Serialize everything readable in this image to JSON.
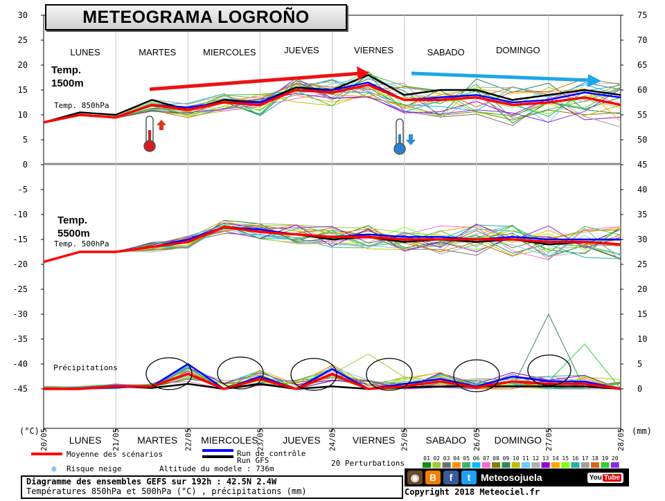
{
  "header": {
    "title": "METEOGRAMA LOGROÑO"
  },
  "annotations": {
    "temp1500": [
      "Temp.",
      "1500m"
    ],
    "temp5500": [
      "Temp.",
      "5500m"
    ],
    "label850": "Temp. 850hPa",
    "label500": "Temp. 500hPa",
    "precip": "Précipitations"
  },
  "days_top": [
    "LUNES",
    "MARTES",
    "MIERCOLES",
    "JUEVES",
    "VIERNES",
    "SABADO",
    "DOMINGO"
  ],
  "days_bottom": [
    "LUNES",
    "MARTES",
    "MIERCOLES",
    "JUEVES",
    "VIERNES",
    "SABADO",
    "DOMINGO"
  ],
  "legend": {
    "mean": "Moyenne des scénarios",
    "control": "Run de contrôle",
    "gfs": "Run GFS",
    "snow": "Risque neige",
    "altitude": "Altitude du modele : 736m",
    "perturbations": "20 Perturbations",
    "pert_ids": [
      "01",
      "02",
      "03",
      "04",
      "05",
      "06",
      "07",
      "08",
      "09",
      "10",
      "11",
      "12",
      "13",
      "14",
      "15",
      "16",
      "17",
      "18",
      "19",
      "20"
    ],
    "pert_colors": [
      "#0f8f0f",
      "#9acd32",
      "#707070",
      "#ff8c00",
      "#3cb371",
      "#00bfff",
      "#ff66cc",
      "#808000",
      "#2e8b57",
      "#c0c000",
      "#66ccff",
      "#b0b0b0",
      "#9400d3",
      "#ffa500",
      "#7fff00",
      "#20b2aa",
      "#a0a0a0",
      "#d2691e",
      "#32cd32",
      "#8a2be2"
    ]
  },
  "colors": {
    "mean": "#ff0000",
    "control": "#0000ff",
    "gfs": "#000000",
    "rise_arrow": "#ee1111",
    "fall_arrow": "#1ba7e8"
  },
  "caption": {
    "line1": "Diagramme des ensembles GEFS sur 192h : 42.5N 2.4W",
    "line2": "Températures 850hPa et 500hPa (°C) , précipitations (mm)"
  },
  "branding": {
    "site": "Meteosojuela",
    "youtube": "You",
    "youtube_tube": "Tube",
    "copyright": "Copyright 2018 Meteociel.fr"
  },
  "icon_names": [
    "thermometer-up-icon",
    "thermometer-down-icon",
    "snowflake-icon",
    "camera-icon",
    "blogger-icon",
    "facebook-icon",
    "twitter-icon",
    "youtube-icon"
  ],
  "chart_data": {
    "type": "line",
    "title": "METEOGRAMA LOGROÑO",
    "x_dates": [
      "20/05",
      "21/05",
      "22/05",
      "23/05",
      "24/05",
      "25/05",
      "26/05",
      "27/05",
      "28/05"
    ],
    "x_hours": [
      0,
      12,
      24,
      36,
      48,
      60,
      72,
      84,
      96,
      108,
      120,
      132,
      144,
      156,
      168,
      180,
      192
    ],
    "left_axis": {
      "label": "(°C)",
      "ticks": [
        30,
        25,
        20,
        15,
        10,
        5,
        0,
        -5,
        -10,
        -15,
        -20,
        -25,
        -30,
        -35,
        -40,
        -45
      ],
      "range": [
        -45,
        30
      ]
    },
    "right_axis": {
      "label": "(mm)",
      "ticks": [
        75,
        70,
        65,
        60,
        55,
        50,
        45,
        40,
        35,
        30,
        25,
        20,
        15,
        10,
        5,
        0
      ],
      "range": [
        0,
        75
      ]
    },
    "series": [
      {
        "name": "Moyenne des scénarios",
        "group": "Temp. 850hPa",
        "values": [
          8.5,
          10,
          9.5,
          12,
          11,
          12.5,
          12,
          15,
          14.5,
          16,
          13,
          13,
          13.5,
          12,
          12.5,
          13.5,
          12
        ]
      },
      {
        "name": "Run de contrôle",
        "group": "Temp. 850hPa",
        "values": [
          8.5,
          10,
          9.5,
          12,
          11.5,
          12.5,
          12.5,
          15,
          15,
          16.5,
          13,
          13.5,
          14,
          12.5,
          13,
          14.5,
          13.5
        ]
      },
      {
        "name": "Run GFS",
        "group": "Temp. 850hPa",
        "values": [
          8.5,
          10.5,
          10,
          13,
          11,
          13,
          12.5,
          15.5,
          15,
          18,
          14,
          15,
          15,
          13,
          14,
          15,
          14
        ]
      },
      {
        "name": "Moyenne des scénarios",
        "group": "Temp. 500hPa",
        "values": [
          -19.5,
          -17.5,
          -17.5,
          -16.5,
          -15.5,
          -12.5,
          -13.5,
          -14,
          -14.5,
          -14.5,
          -15,
          -15,
          -15,
          -15,
          -15.5,
          -15.5,
          -16
        ]
      },
      {
        "name": "Run de contrôle",
        "group": "Temp. 500hPa",
        "values": [
          -19.5,
          -17.5,
          -17.5,
          -16.5,
          -15,
          -12.5,
          -13,
          -14,
          -14.5,
          -14,
          -14.5,
          -14.5,
          -15,
          -14.5,
          -15,
          -15,
          -15
        ]
      },
      {
        "name": "Run GFS",
        "group": "Temp. 500hPa",
        "values": [
          -19.5,
          -17.5,
          -17.5,
          -16.5,
          -15.5,
          -12.5,
          -13.5,
          -14,
          -15,
          -14.5,
          -15.5,
          -15,
          -15.5,
          -15,
          -16,
          -15.5,
          -16
        ]
      },
      {
        "name": "Moyenne des scénarios",
        "group": "Précipitations",
        "values": [
          0,
          0,
          0.5,
          0.5,
          3,
          0,
          2,
          0,
          3,
          0,
          0.5,
          1.5,
          0.3,
          1.5,
          1,
          1,
          0
        ]
      },
      {
        "name": "Run de contrôle",
        "group": "Précipitations",
        "values": [
          0,
          0,
          0.3,
          0.5,
          5,
          0,
          2.5,
          0,
          4,
          0,
          1,
          2,
          0.5,
          2.5,
          1.5,
          1.5,
          0
        ]
      },
      {
        "name": "Run GFS",
        "group": "Précipitations",
        "values": [
          0,
          0,
          0.5,
          0.2,
          1,
          0,
          1,
          0,
          0.5,
          0,
          0.3,
          0.5,
          0.5,
          0.5,
          0.5,
          0.5,
          0
        ]
      }
    ],
    "precip_peak_value": 15,
    "grid": false,
    "legend_position": "bottom"
  }
}
